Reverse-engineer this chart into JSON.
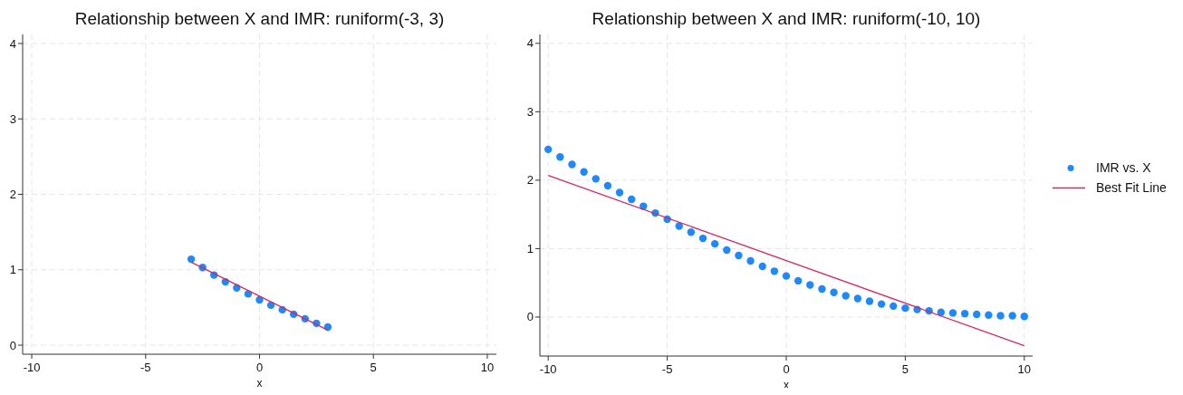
{
  "chart_data": [
    {
      "type": "scatter",
      "title": "Relationship between X and IMR: runiform(-3, 3)",
      "xlabel": "x",
      "xlim": [
        -10.4,
        10.4
      ],
      "ylim": [
        -0.12,
        4.12
      ],
      "xticks": [
        -10,
        -5,
        0,
        5,
        10
      ],
      "yticks": [
        0,
        1,
        2,
        3,
        4
      ],
      "grid": true,
      "legend": false,
      "series": [
        {
          "marker": "circle",
          "color": "#1e88ff",
          "x": [
            -3,
            -2.5,
            -2,
            -1.5,
            -1,
            -0.5,
            0,
            0.5,
            1,
            1.5,
            2,
            2.5,
            3
          ],
          "values": [
            1.14,
            1.03,
            0.93,
            0.84,
            0.76,
            0.68,
            0.6,
            0.53,
            0.47,
            0.41,
            0.35,
            0.29,
            0.24
          ]
        },
        {
          "type": "line",
          "color": "#d6275f",
          "x": [
            -3,
            3
          ],
          "values": [
            1.1,
            0.2
          ]
        }
      ]
    },
    {
      "type": "scatter",
      "title": "Relationship between X and IMR: runiform(-10, 10)",
      "xlabel": "x",
      "xlim": [
        -10.35,
        10.35
      ],
      "ylim": [
        -0.57,
        4.13
      ],
      "xticks": [
        -10,
        -5,
        0,
        5,
        10
      ],
      "yticks": [
        0,
        1,
        2,
        3,
        4
      ],
      "grid": true,
      "legend": "right",
      "series": [
        {
          "marker": "circle",
          "name": "IMR vs. X",
          "color": "#1e88ff",
          "x": [
            -10,
            -9.5,
            -9,
            -8.5,
            -8,
            -7.5,
            -7,
            -6.5,
            -6,
            -5.5,
            -5,
            -4.5,
            -4,
            -3.5,
            -3,
            -2.5,
            -2,
            -1.5,
            -1,
            -0.5,
            0,
            0.5,
            1,
            1.5,
            2,
            2.5,
            3,
            3.5,
            4,
            4.5,
            5,
            5.5,
            6,
            6.5,
            7,
            7.5,
            8,
            8.5,
            9,
            9.5,
            10
          ],
          "values": [
            2.45,
            2.34,
            2.23,
            2.12,
            2.02,
            1.92,
            1.82,
            1.72,
            1.62,
            1.52,
            1.43,
            1.33,
            1.24,
            1.15,
            1.07,
            0.98,
            0.9,
            0.82,
            0.74,
            0.67,
            0.6,
            0.53,
            0.47,
            0.41,
            0.36,
            0.31,
            0.27,
            0.23,
            0.19,
            0.16,
            0.13,
            0.11,
            0.09,
            0.07,
            0.06,
            0.05,
            0.04,
            0.03,
            0.02,
            0.02,
            0.01
          ]
        },
        {
          "type": "line",
          "name": "Best Fit Line",
          "color": "#d6275f",
          "x": [
            -10,
            10
          ],
          "values": [
            2.07,
            -0.42
          ]
        }
      ]
    }
  ]
}
